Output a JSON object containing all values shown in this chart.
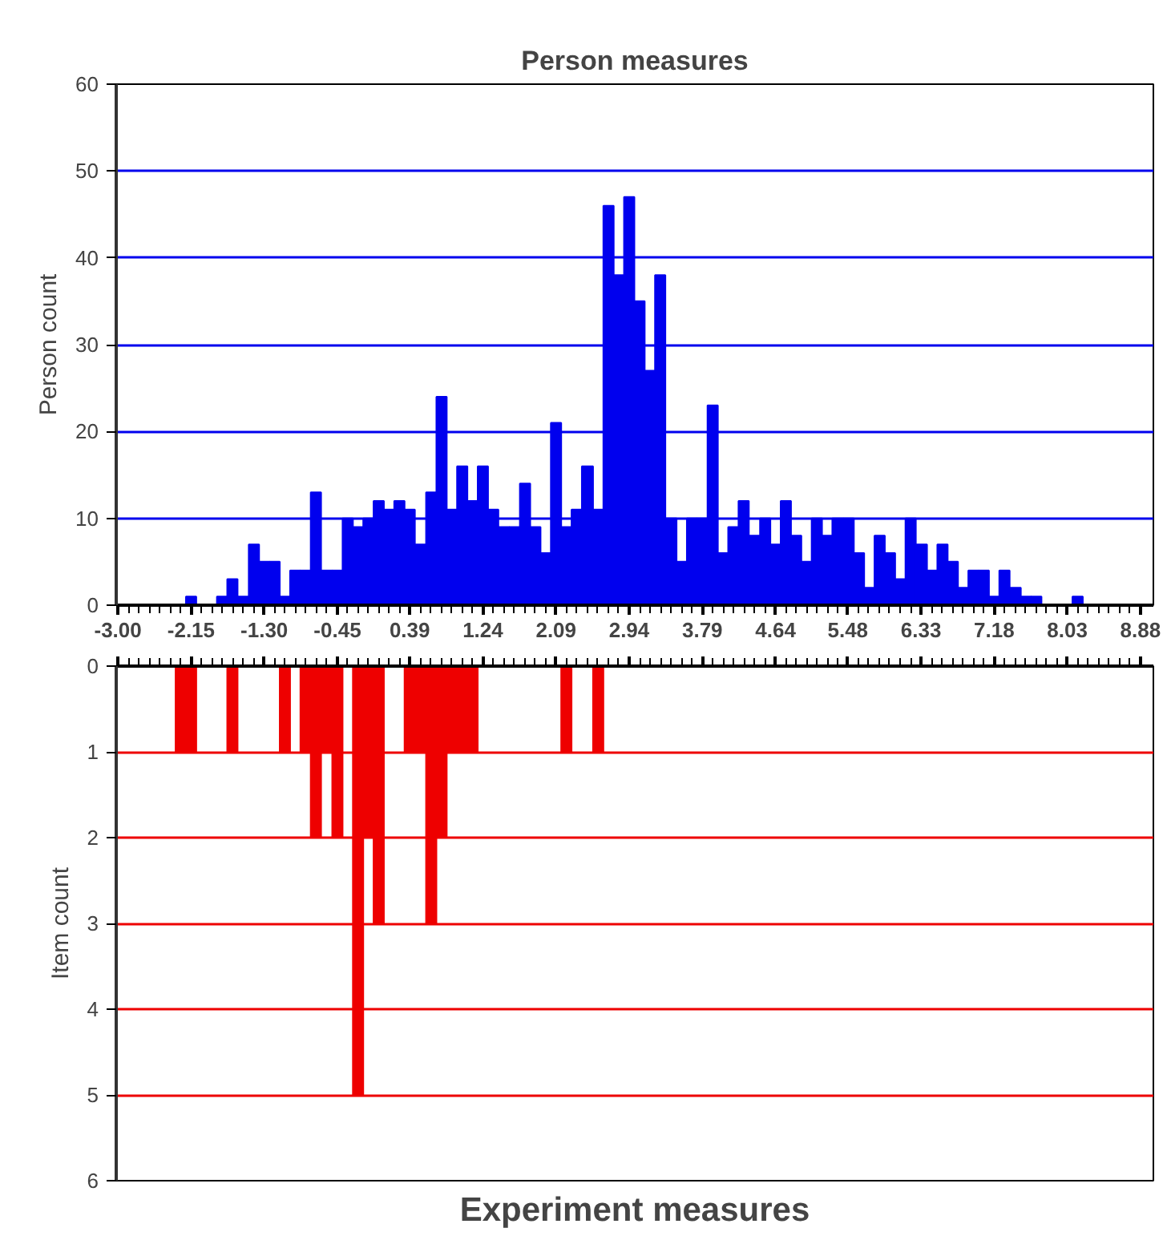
{
  "chart_data": [
    {
      "type": "histogram",
      "title": "Person measures",
      "ylabel": "Person count",
      "color": "#0000ee",
      "bins": [
        -2.21,
        -2.09,
        -1.97,
        -1.85,
        -1.73,
        -1.61,
        -1.48,
        -1.36,
        -1.24,
        -1.12,
        -1.0,
        -0.88,
        -0.76,
        -0.64,
        -0.51,
        -0.39,
        -0.27,
        -0.15,
        -0.03,
        0.09,
        0.21,
        0.33,
        0.45,
        0.58,
        0.7,
        0.82,
        0.94,
        1.06,
        1.18,
        1.3,
        1.42,
        1.55,
        1.67,
        1.79,
        1.91,
        2.03,
        2.15,
        2.27,
        2.39,
        2.52,
        2.64,
        2.76,
        2.88,
        3.0,
        3.12,
        3.24,
        3.36,
        3.49,
        3.61,
        3.73,
        3.85,
        3.97,
        4.09,
        4.21,
        4.33,
        4.46,
        4.58,
        4.7,
        4.82,
        4.94,
        5.06,
        5.18,
        5.3,
        5.43,
        5.55,
        5.67,
        5.79,
        5.91,
        6.03,
        6.15,
        6.27,
        6.4,
        6.52,
        6.64,
        6.76,
        6.88,
        7.0,
        7.12,
        7.24,
        7.36,
        7.49,
        7.61,
        7.73,
        7.85,
        7.97,
        8.09,
        8.21
      ],
      "values": [
        1,
        0,
        0,
        1,
        3,
        1,
        7,
        5,
        5,
        1,
        4,
        4,
        13,
        4,
        4,
        10,
        9,
        10,
        12,
        11,
        12,
        11,
        7,
        13,
        24,
        11,
        16,
        12,
        16,
        11,
        9,
        9,
        14,
        9,
        6,
        21,
        9,
        11,
        16,
        11,
        46,
        38,
        47,
        35,
        27,
        38,
        10,
        5,
        10,
        10,
        23,
        6,
        9,
        12,
        8,
        10,
        7,
        12,
        8,
        5,
        10,
        8,
        10,
        10,
        6,
        2,
        8,
        6,
        3,
        10,
        7,
        4,
        7,
        5,
        2,
        4,
        4,
        1,
        4,
        2,
        1,
        1,
        0,
        0,
        0,
        1
      ],
      "xlim": [
        -3.02,
        9.03
      ],
      "ylim": [
        0,
        60
      ],
      "yticks": [
        0,
        10,
        20,
        30,
        40,
        50,
        60
      ],
      "xticks": [
        {
          "value": -3.0,
          "label": "-3.00"
        },
        {
          "value": -2.15,
          "label": "-2.15"
        },
        {
          "value": -1.3,
          "label": "-1.30"
        },
        {
          "value": -0.45,
          "label": "-0.45"
        },
        {
          "value": 0.39,
          "label": "0.39"
        },
        {
          "value": 1.24,
          "label": "1.24"
        },
        {
          "value": 2.09,
          "label": "2.09"
        },
        {
          "value": 2.94,
          "label": "2.94"
        },
        {
          "value": 3.79,
          "label": "3.79"
        },
        {
          "value": 4.64,
          "label": "4.64"
        },
        {
          "value": 5.48,
          "label": "5.48"
        },
        {
          "value": 6.33,
          "label": "6.33"
        },
        {
          "value": 7.18,
          "label": "7.18"
        },
        {
          "value": 8.03,
          "label": "8.03"
        },
        {
          "value": 8.88,
          "label": "8.88"
        }
      ],
      "grid": "y"
    },
    {
      "type": "histogram",
      "xlabel": "Experiment measures",
      "ylabel": "Item count",
      "color": "#ee0000",
      "bins": [
        -2.33,
        -2.21,
        -2.09,
        -1.97,
        -1.85,
        -1.73,
        -1.61,
        -1.48,
        -1.36,
        -1.24,
        -1.12,
        -1.0,
        -0.88,
        -0.76,
        -0.64,
        -0.51,
        -0.39,
        -0.27,
        -0.15,
        -0.03,
        0.09,
        0.21,
        0.33,
        0.45,
        0.58,
        0.7,
        0.82,
        0.94,
        1.06,
        1.18,
        1.3,
        1.42,
        1.55,
        1.67,
        1.79,
        1.91,
        2.03,
        2.15,
        2.27,
        2.39,
        2.52,
        2.64
      ],
      "values": [
        1,
        1,
        0,
        0,
        0,
        1,
        0,
        0,
        0,
        0,
        1,
        0,
        1,
        2,
        1,
        2,
        0,
        5,
        2,
        3,
        0,
        0,
        1,
        1,
        3,
        2,
        1,
        1,
        1,
        0,
        0,
        0,
        0,
        0,
        0,
        0,
        0,
        1,
        0,
        0,
        1
      ],
      "xlim": [
        -3.02,
        9.03
      ],
      "ylim": [
        6,
        0
      ],
      "yticks": [
        0,
        1,
        2,
        3,
        4,
        5,
        6
      ],
      "xticks": [
        {
          "value": -3.0,
          "label": null
        },
        {
          "value": -2.15,
          "label": null
        },
        {
          "value": -1.3,
          "label": null
        },
        {
          "value": -0.45,
          "label": null
        },
        {
          "value": 0.39,
          "label": null
        },
        {
          "value": 1.24,
          "label": null
        },
        {
          "value": 2.09,
          "label": null
        },
        {
          "value": 2.94,
          "label": null
        },
        {
          "value": 3.79,
          "label": null
        },
        {
          "value": 4.64,
          "label": null
        },
        {
          "value": 5.48,
          "label": null
        },
        {
          "value": 6.33,
          "label": null
        },
        {
          "value": 7.18,
          "label": null
        },
        {
          "value": 8.03,
          "label": null
        },
        {
          "value": 8.88,
          "label": null
        }
      ],
      "tick_labels": "y",
      "grid": "y"
    }
  ]
}
